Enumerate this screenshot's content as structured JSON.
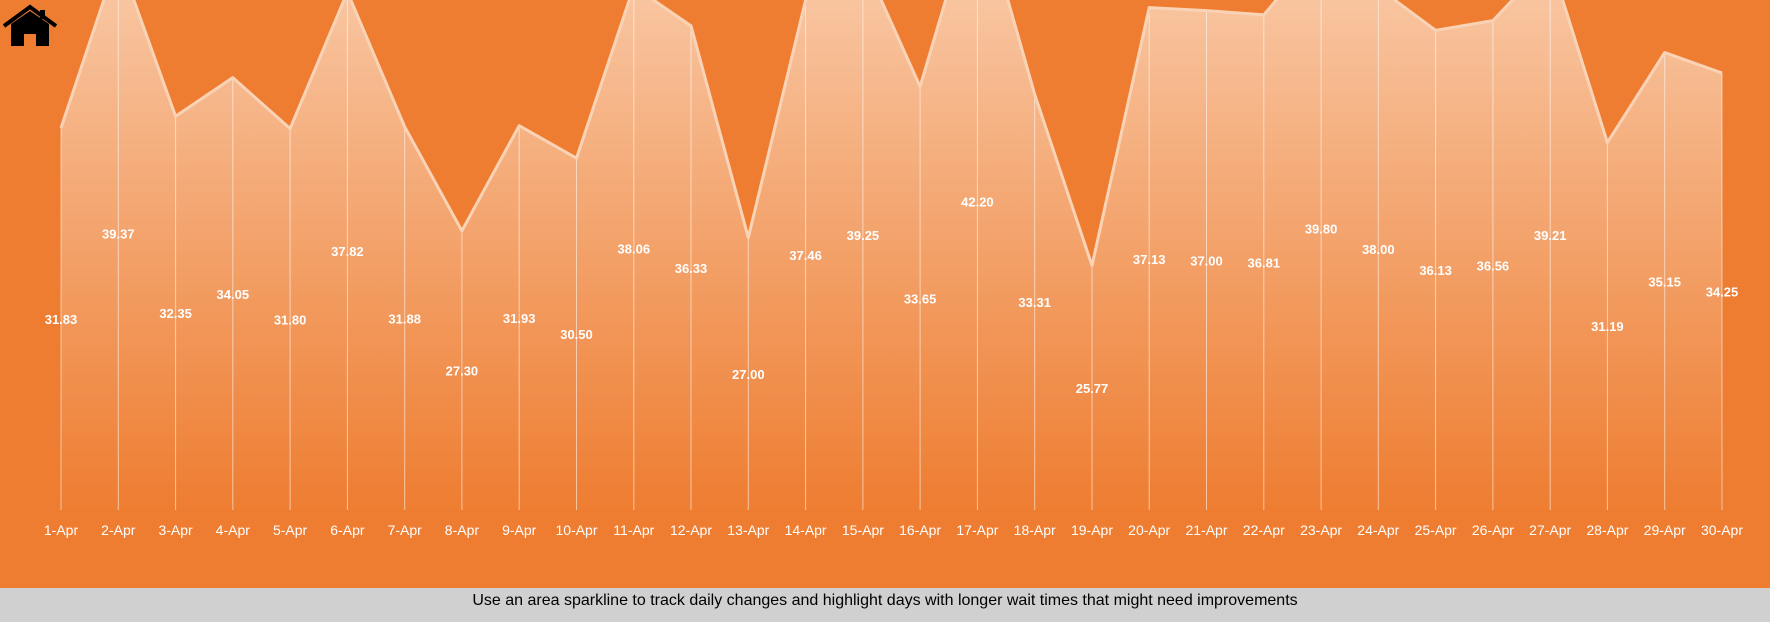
{
  "colors": {
    "background": "#ee7d31",
    "footer_background": "#d0d0d0",
    "area_top": "#fad3b6",
    "area_bottom": "#ee7d31",
    "line": "#fad3b6",
    "text": "#ffffff"
  },
  "home": {
    "icon": "home-icon"
  },
  "footer": {
    "text": "Use an area sparkline to track daily changes and highlight days with longer wait times that might need improvements"
  },
  "chart_data": {
    "type": "area",
    "title": "",
    "xlabel": "",
    "ylabel": "",
    "ylim": [
      15,
      45
    ],
    "grid": false,
    "legend": "none",
    "categories": [
      "1-Apr",
      "2-Apr",
      "3-Apr",
      "4-Apr",
      "5-Apr",
      "6-Apr",
      "7-Apr",
      "8-Apr",
      "9-Apr",
      "10-Apr",
      "11-Apr",
      "12-Apr",
      "13-Apr",
      "14-Apr",
      "15-Apr",
      "16-Apr",
      "17-Apr",
      "18-Apr",
      "19-Apr",
      "20-Apr",
      "21-Apr",
      "22-Apr",
      "23-Apr",
      "24-Apr",
      "25-Apr",
      "26-Apr",
      "27-Apr",
      "28-Apr",
      "29-Apr",
      "30-Apr"
    ],
    "values": [
      31.83,
      39.37,
      32.35,
      34.05,
      31.8,
      37.82,
      31.88,
      27.3,
      31.93,
      30.5,
      38.06,
      36.33,
      27.0,
      37.46,
      39.25,
      33.65,
      42.2,
      33.31,
      25.77,
      37.13,
      37.0,
      36.81,
      39.8,
      38.0,
      36.13,
      36.56,
      39.21,
      31.19,
      35.15,
      34.25
    ],
    "labels": [
      "31.83",
      "39.37",
      "32.35",
      "34.05",
      "31.80",
      "37.82",
      "31.88",
      "27.30",
      "31.93",
      "30.50",
      "38.06",
      "36.33",
      "27.00",
      "37.46",
      "39.25",
      "33.65",
      "42.20",
      "33.31",
      "25.77",
      "37.13",
      "37.00",
      "36.81",
      "39.80",
      "38.00",
      "36.13",
      "36.56",
      "39.21",
      "31.19",
      "35.15",
      "34.25"
    ]
  }
}
